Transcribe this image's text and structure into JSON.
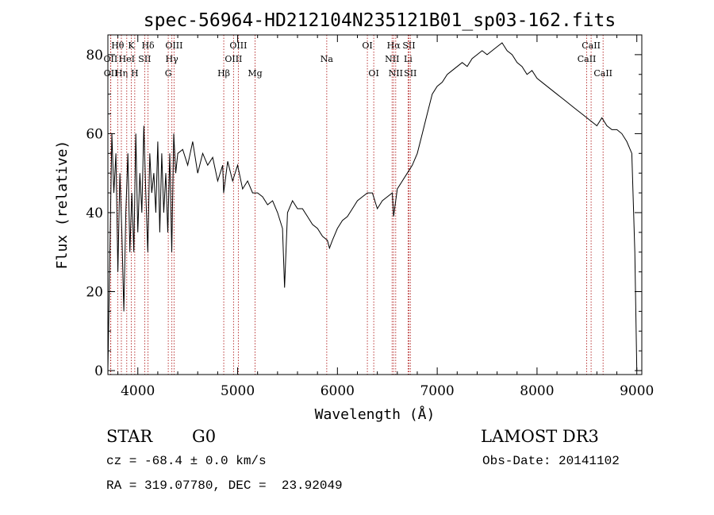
{
  "chart_data": {
    "type": "line",
    "title": "spec-56964-HD212104N235121B01_sp03-162.fits",
    "xlabel": "Wavelength (Å)",
    "ylabel": "Flux (relative)",
    "xlim": [
      3700,
      9050
    ],
    "ylim": [
      -1,
      85
    ],
    "xticks": [
      4000,
      5000,
      6000,
      7000,
      8000,
      9000
    ],
    "yticks": [
      0,
      20,
      40,
      60,
      80
    ],
    "grid": false,
    "series": [
      {
        "name": "flux",
        "color": "#000000",
        "x": [
          3700,
          3720,
          3740,
          3760,
          3780,
          3800,
          3820,
          3840,
          3860,
          3880,
          3900,
          3920,
          3940,
          3960,
          3980,
          4000,
          4020,
          4040,
          4060,
          4080,
          4100,
          4120,
          4140,
          4160,
          4180,
          4200,
          4220,
          4240,
          4260,
          4280,
          4300,
          4320,
          4340,
          4360,
          4380,
          4400,
          4450,
          4500,
          4550,
          4600,
          4650,
          4700,
          4750,
          4800,
          4850,
          4860,
          4900,
          4950,
          5000,
          5050,
          5100,
          5150,
          5200,
          5250,
          5300,
          5350,
          5400,
          5450,
          5470,
          5500,
          5550,
          5600,
          5650,
          5700,
          5750,
          5800,
          5850,
          5900,
          5920,
          5950,
          6000,
          6050,
          6100,
          6150,
          6200,
          6250,
          6300,
          6350,
          6400,
          6450,
          6500,
          6550,
          6563,
          6600,
          6650,
          6700,
          6750,
          6800,
          6850,
          6900,
          6950,
          7000,
          7050,
          7100,
          7150,
          7200,
          7250,
          7300,
          7350,
          7400,
          7450,
          7500,
          7550,
          7600,
          7650,
          7700,
          7750,
          7800,
          7850,
          7900,
          7950,
          8000,
          8050,
          8100,
          8150,
          8200,
          8250,
          8300,
          8350,
          8400,
          8450,
          8500,
          8550,
          8600,
          8650,
          8700,
          8750,
          8800,
          8850,
          8900,
          8950,
          8980,
          9000
        ],
        "values": [
          0,
          30,
          60,
          45,
          55,
          25,
          50,
          35,
          15,
          40,
          55,
          30,
          45,
          30,
          60,
          35,
          50,
          40,
          62,
          45,
          30,
          55,
          45,
          50,
          40,
          58,
          35,
          55,
          40,
          50,
          35,
          55,
          30,
          60,
          50,
          55,
          56,
          52,
          58,
          50,
          55,
          52,
          54,
          48,
          52,
          45,
          53,
          48,
          52,
          46,
          48,
          45,
          45,
          44,
          42,
          43,
          40,
          36,
          21,
          40,
          43,
          41,
          41,
          39,
          37,
          36,
          34,
          33,
          31,
          33,
          36,
          38,
          39,
          41,
          43,
          44,
          45,
          45,
          41,
          43,
          44,
          45,
          39,
          46,
          48,
          50,
          52,
          55,
          60,
          65,
          70,
          72,
          73,
          75,
          76,
          77,
          78,
          77,
          79,
          80,
          81,
          80,
          81,
          82,
          83,
          81,
          80,
          78,
          77,
          75,
          76,
          74,
          73,
          72,
          71,
          70,
          69,
          68,
          67,
          66,
          65,
          64,
          63,
          62,
          64,
          62,
          61,
          61,
          60,
          58,
          55,
          30,
          0
        ]
      }
    ],
    "line_markers": [
      {
        "label": "Hθ",
        "x": 3798,
        "row": 1
      },
      {
        "label": "OII",
        "x": 3727,
        "row": 2
      },
      {
        "label": "OII",
        "x": 3729,
        "row": 3
      },
      {
        "label": "Hη",
        "x": 3835,
        "row": 3
      },
      {
        "label": "HeI",
        "x": 3889,
        "row": 2
      },
      {
        "label": "K",
        "x": 3934,
        "row": 1
      },
      {
        "label": "H",
        "x": 3969,
        "row": 3
      },
      {
        "label": "SII",
        "x": 4069,
        "row": 2
      },
      {
        "label": "Hδ",
        "x": 4102,
        "row": 1
      },
      {
        "label": "OIII",
        "x": 4363,
        "row": 1
      },
      {
        "label": "Hγ",
        "x": 4341,
        "row": 2
      },
      {
        "label": "G",
        "x": 4305,
        "row": 3
      },
      {
        "label": "OIII",
        "x": 5007,
        "row": 1
      },
      {
        "label": "OIII",
        "x": 4959,
        "row": 2
      },
      {
        "label": "Hβ",
        "x": 4861,
        "row": 3
      },
      {
        "label": "Mg",
        "x": 5175,
        "row": 3
      },
      {
        "label": "Na",
        "x": 5893,
        "row": 2
      },
      {
        "label": "OI",
        "x": 6300,
        "row": 1
      },
      {
        "label": "OI",
        "x": 6364,
        "row": 3
      },
      {
        "label": "Hα",
        "x": 6563,
        "row": 1
      },
      {
        "label": "NII",
        "x": 6548,
        "row": 2
      },
      {
        "label": "NII",
        "x": 6584,
        "row": 3
      },
      {
        "label": "SII",
        "x": 6717,
        "row": 1
      },
      {
        "label": "Li",
        "x": 6708,
        "row": 2
      },
      {
        "label": "SII",
        "x": 6731,
        "row": 3
      },
      {
        "label": "CaII",
        "x": 8542,
        "row": 1
      },
      {
        "label": "CaII",
        "x": 8498,
        "row": 2
      },
      {
        "label": "CaII",
        "x": 8662,
        "row": 3
      }
    ]
  },
  "info": {
    "object_type": "STAR",
    "spectral_class": "G0",
    "survey": "LAMOST DR3",
    "cz": "cz = -68.4 ± 0.0 km/s",
    "obs_date": "Obs-Date: 20141102",
    "coords": "RA = 319.07780, DEC =  23.92049"
  }
}
